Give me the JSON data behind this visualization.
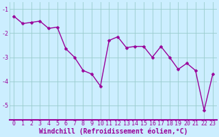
{
  "x": [
    0,
    1,
    2,
    3,
    4,
    5,
    6,
    7,
    8,
    9,
    10,
    11,
    12,
    13,
    14,
    15,
    16,
    17,
    18,
    19,
    20,
    21,
    22,
    23
  ],
  "y": [
    -1.3,
    -1.6,
    -1.55,
    -1.5,
    -1.8,
    -1.75,
    -2.65,
    -3.0,
    -3.55,
    -3.7,
    -4.2,
    -2.3,
    -2.15,
    -2.6,
    -2.55,
    -2.55,
    -3.0,
    -2.55,
    -3.0,
    -3.5,
    -3.25,
    -3.55,
    -5.2,
    -3.7
  ],
  "line_color": "#990099",
  "marker_color": "#990099",
  "bg_color": "#cceeff",
  "grid_color": "#99cccc",
  "axis_color": "#990099",
  "xlabel": "Windchill (Refroidissement éolien,°C)",
  "ylim": [
    -5.6,
    -0.7
  ],
  "yticks": [
    -5,
    -4,
    -3,
    -2,
    -1
  ],
  "xtick_labels": [
    "0",
    "1",
    "2",
    "3",
    "4",
    "5",
    "6",
    "7",
    "8",
    "9",
    "10",
    "11",
    "12",
    "13",
    "14",
    "15",
    "16",
    "17",
    "18",
    "19",
    "20",
    "21",
    "22",
    "23"
  ],
  "xlabel_fontsize": 7,
  "tick_fontsize": 6,
  "line_width": 1.0,
  "marker_size": 2.5
}
